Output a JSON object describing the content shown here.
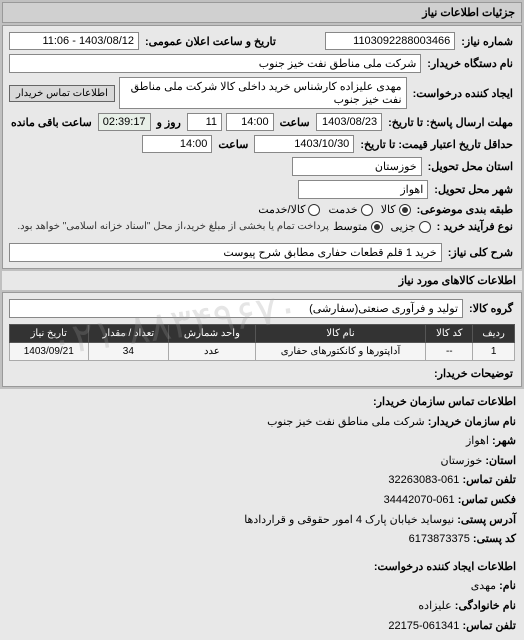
{
  "header": {
    "title": "جزئیات اطلاعات نیاز"
  },
  "top": {
    "need_no_label": "شماره نیاز:",
    "need_no": "1103092288003466",
    "announce_label": "تاریخ و ساعت اعلان عمومی:",
    "announce_value": "1403/08/12 - 11:06",
    "buyer_label": "نام دستگاه خریدار:",
    "buyer_value": "شرکت ملی مناطق نفت خیز جنوب",
    "creator_label": "ایجاد کننده درخواست:",
    "creator_value": "مهدی  علیزاده  کارشناس خرید داخلی کالا شرکت ملی مناطق نفت خیز جنوب",
    "contact_btn": "اطلاعات تماس خریدار",
    "deadline_label": "مهلت ارسال پاسخ: تا تاریخ:",
    "deadline_date": "1403/08/23",
    "time_label": "ساعت",
    "deadline_time": "14:00",
    "days_remain": "11",
    "days_remain_label": "روز و",
    "time_remain": "02:39:17",
    "time_remain_label": "ساعت باقی مانده",
    "validity_label": "حداقل تاریخ اعتبار قیمت: تا تاریخ:",
    "validity_date": "1403/10/30",
    "validity_time": "14:00",
    "province_label": "استان محل تحویل:",
    "province": "خوزستان",
    "city_label": "شهر محل تحویل:",
    "city": "اهواز",
    "subject_class_label": "طبقه بندی موضوعی:",
    "radio_goods": "کالا",
    "radio_service": "خدمت",
    "radio_goods_service": "کالا/خدمت",
    "process_label": "نوع فرآیند خرید :",
    "radio_partial": "جزیی",
    "radio_medium": "متوسط",
    "process_note": "پرداخت تمام یا بخشی از مبلغ خرید،از محل \"اسناد خزانه اسلامی\" خواهد بود.",
    "desc_label": "شرح کلی نیاز:",
    "desc_value": "خرید 1 قلم قطعات حفاری مطابق شرح پیوست"
  },
  "goods": {
    "section_title": "اطلاعات کالاهای مورد نیاز",
    "group_label": "گروه کالا:",
    "group_value": "تولید و فرآوری صنعتی(سفارشی)",
    "columns": [
      "ردیف",
      "کد کالا",
      "نام کالا",
      "واحد شمارش",
      "تعداد / مقدار",
      "تاریخ نیاز"
    ],
    "rows": [
      [
        "1",
        "--",
        "آداپتورها و کانکتورهای حفاری",
        "عدد",
        "34",
        "1403/09/21"
      ]
    ],
    "buyer_notes_label": "توضیحات خریدار:"
  },
  "contact": {
    "section_title": "اطلاعات تماس سازمان خریدار:",
    "org_label": "نام سازمان خریدار:",
    "org_value": "شرکت ملی مناطق نفت خیز جنوب",
    "city_label": "شهر:",
    "city_value": "اهواز",
    "province_label": "استان:",
    "province_value": "خوزستان",
    "phone_label": "تلفن تماس:",
    "phone_value": "061-32263083",
    "fax_label": "فکس تماس:",
    "fax_value": "061-34442070",
    "address_label": "آدرس پستی:",
    "address_value": "نیوساید خیابان پارک 4 امور حقوقی و قراردادها",
    "postal_label": "کد پستی:",
    "postal_value": "6173873375"
  },
  "creator": {
    "section_title": "اطلاعات ایجاد کننده درخواست:",
    "name_label": "نام:",
    "name_value": "مهدی",
    "lname_label": "نام خانوادگی:",
    "lname_value": "علیزاده",
    "phone_label": "تلفن تماس:",
    "phone_value": "061341-22175"
  },
  "watermark": "۰۲۱-۸۸۳۴۹۶۷۰",
  "colors": {
    "panel_bg": "#e8e8e8",
    "header_bg": "#d0d0d0",
    "field_bg": "#ffffff",
    "th_bg": "#333333",
    "th_color": "#ffffff",
    "border": "#999999"
  }
}
